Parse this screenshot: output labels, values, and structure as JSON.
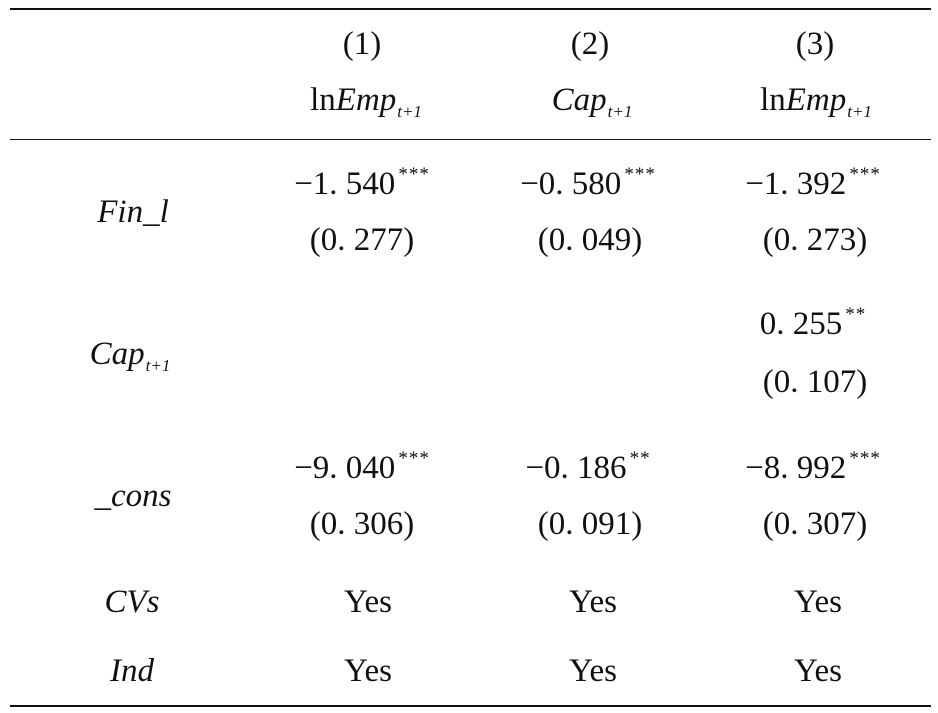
{
  "columns": [
    {
      "number": "(1)",
      "header": {
        "prefix": "ln",
        "var": "Emp",
        "sub": "t+1"
      }
    },
    {
      "number": "(2)",
      "header": {
        "prefix": "",
        "var": "Cap",
        "sub": "t+1"
      }
    },
    {
      "number": "(3)",
      "header": {
        "prefix": "ln",
        "var": "Emp",
        "sub": "t+1"
      }
    }
  ],
  "rows": [
    {
      "label": {
        "var": "Fin_l",
        "sub": ""
      },
      "cells": [
        {
          "coef": "−1. 540",
          "stars": "***",
          "se": "0. 277"
        },
        {
          "coef": "−0. 580",
          "stars": "***",
          "se": "0. 049"
        },
        {
          "coef": "−1. 392",
          "stars": "***",
          "se": "0. 273"
        }
      ]
    },
    {
      "label": {
        "var": "Cap",
        "sub": "t+1"
      },
      "cells": [
        null,
        null,
        {
          "coef": "0. 255",
          "stars": "**",
          "se": "0. 107"
        }
      ]
    },
    {
      "label": {
        "var": "_cons",
        "sub": ""
      },
      "cells": [
        {
          "coef": "−9. 040",
          "stars": "***",
          "se": "0. 306"
        },
        {
          "coef": "−0. 186",
          "stars": "**",
          "se": "0. 091"
        },
        {
          "coef": "−8. 992",
          "stars": "***",
          "se": "0. 307"
        }
      ]
    }
  ],
  "indicators": [
    {
      "label": "CVs",
      "values": [
        "Yes",
        "Yes",
        "Yes"
      ]
    },
    {
      "label": "Ind",
      "values": [
        "Yes",
        "Yes",
        "Yes"
      ]
    }
  ]
}
